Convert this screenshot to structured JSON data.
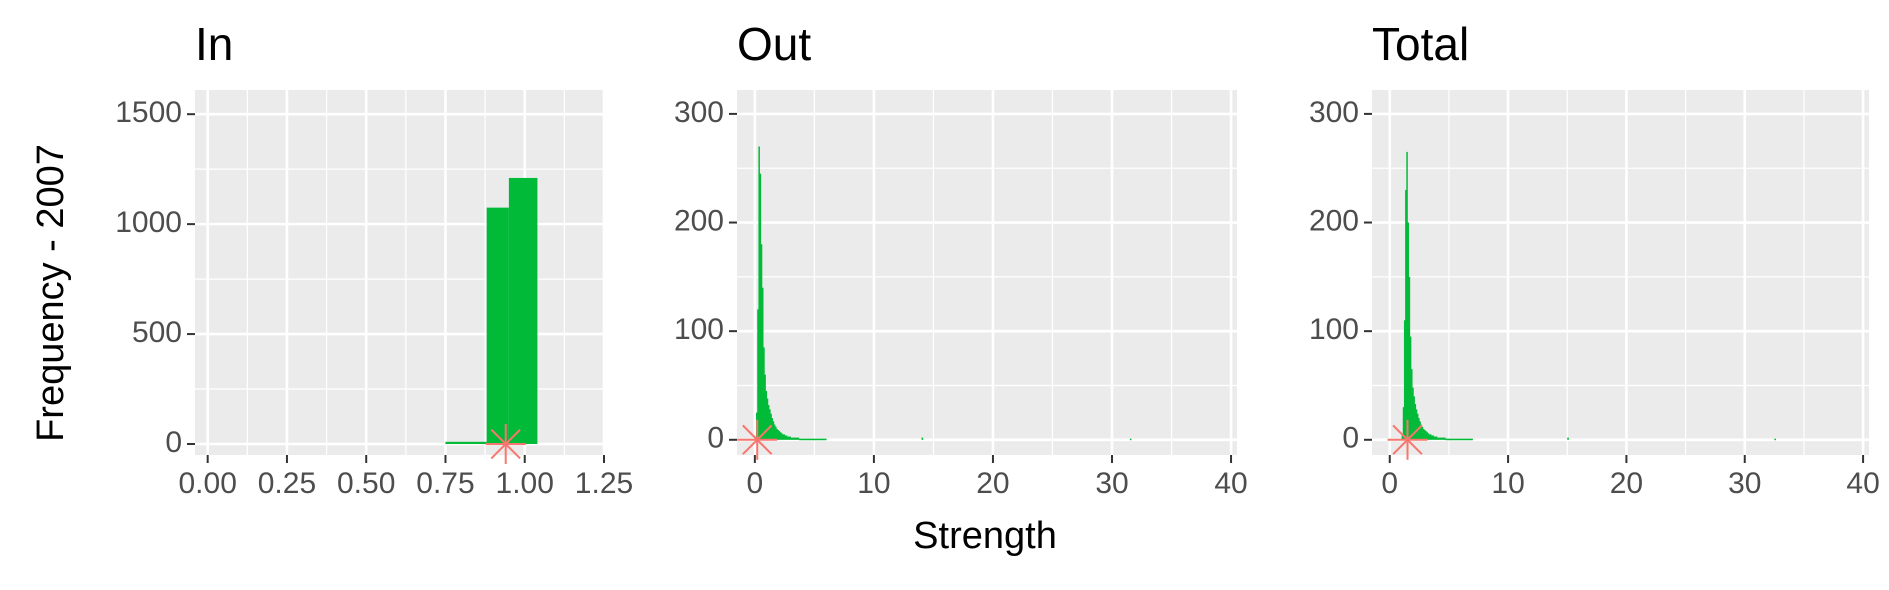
{
  "figure": {
    "ylabel": "Frequency - 2007",
    "xlabel": "Strength"
  },
  "colors": {
    "panel_background": "#ebebeb",
    "grid_major": "#ffffff",
    "bar_fill": "#00ba38",
    "marker": "#f8766d",
    "tick_text": "#4d4d4d"
  },
  "chart_data": [
    {
      "type": "bar",
      "title": "In",
      "xlim": [
        -0.04,
        1.25
      ],
      "ylim": [
        -50,
        1610
      ],
      "x_ticks": [
        0,
        0.25,
        0.5,
        0.75,
        1.0,
        1.25
      ],
      "x_tick_labels": [
        "0.00",
        "0.25",
        "0.50",
        "0.75",
        "1.00",
        "1.25"
      ],
      "y_ticks": [
        0,
        500,
        1000,
        1500
      ],
      "y_tick_labels": [
        "0",
        "500",
        "1000",
        "1500"
      ],
      "bars": [
        {
          "x0": 0.75,
          "x1": 0.88,
          "y": 10
        },
        {
          "x0": 0.88,
          "x1": 0.95,
          "y": 1075
        },
        {
          "x0": 0.95,
          "x1": 1.04,
          "y": 1210
        }
      ],
      "marker": {
        "x": 0.94,
        "y": 0
      }
    },
    {
      "type": "bar",
      "title": "Out",
      "xlim": [
        -1.5,
        40.5
      ],
      "ylim": [
        -14,
        322
      ],
      "x_ticks": [
        0,
        10,
        20,
        30,
        40
      ],
      "x_tick_labels": [
        "0",
        "10",
        "20",
        "30",
        "40"
      ],
      "y_ticks": [
        0,
        100,
        200,
        300
      ],
      "y_tick_labels": [
        "0",
        "100",
        "200",
        "300"
      ],
      "hist": {
        "x0": 0.0,
        "bin_width": 0.1,
        "values": [
          3,
          25,
          120,
          270,
          245,
          180,
          140,
          85,
          60,
          45,
          38,
          32,
          28,
          24,
          20,
          17,
          14,
          12,
          10,
          9,
          8,
          7,
          6,
          5,
          5,
          4,
          4,
          3,
          3,
          3,
          2,
          2,
          2,
          2,
          2,
          2,
          2,
          1,
          1,
          1,
          1,
          1,
          1,
          1,
          1,
          1,
          1,
          1,
          1,
          1,
          1,
          1,
          1,
          1,
          1,
          1,
          1,
          1,
          1,
          1
        ]
      },
      "sparse_bars": [
        {
          "x": 14.0,
          "y": 2
        },
        {
          "x": 31.5,
          "y": 1
        }
      ],
      "marker": {
        "x": 0.2,
        "y": 0
      }
    },
    {
      "type": "bar",
      "title": "Total",
      "xlim": [
        -1.5,
        40.5
      ],
      "ylim": [
        -14,
        322
      ],
      "x_ticks": [
        0,
        10,
        20,
        30,
        40
      ],
      "x_tick_labels": [
        "0",
        "10",
        "20",
        "30",
        "40"
      ],
      "y_ticks": [
        0,
        100,
        200,
        300
      ],
      "y_tick_labels": [
        "0",
        "100",
        "200",
        "300"
      ],
      "hist": {
        "x0": 1.0,
        "bin_width": 0.1,
        "values": [
          4,
          30,
          110,
          230,
          265,
          200,
          150,
          95,
          65,
          48,
          40,
          33,
          28,
          24,
          20,
          17,
          14,
          12,
          10,
          9,
          8,
          7,
          6,
          5,
          5,
          4,
          4,
          3,
          3,
          3,
          2,
          2,
          2,
          2,
          2,
          2,
          2,
          1,
          1,
          1,
          1,
          1,
          1,
          1,
          1,
          1,
          1,
          1,
          1,
          1,
          1,
          1,
          1,
          1,
          1,
          1,
          1,
          1,
          1,
          1
        ]
      },
      "sparse_bars": [
        {
          "x": 15.0,
          "y": 2
        },
        {
          "x": 32.5,
          "y": 1
        }
      ],
      "marker": {
        "x": 1.5,
        "y": 0
      }
    }
  ]
}
